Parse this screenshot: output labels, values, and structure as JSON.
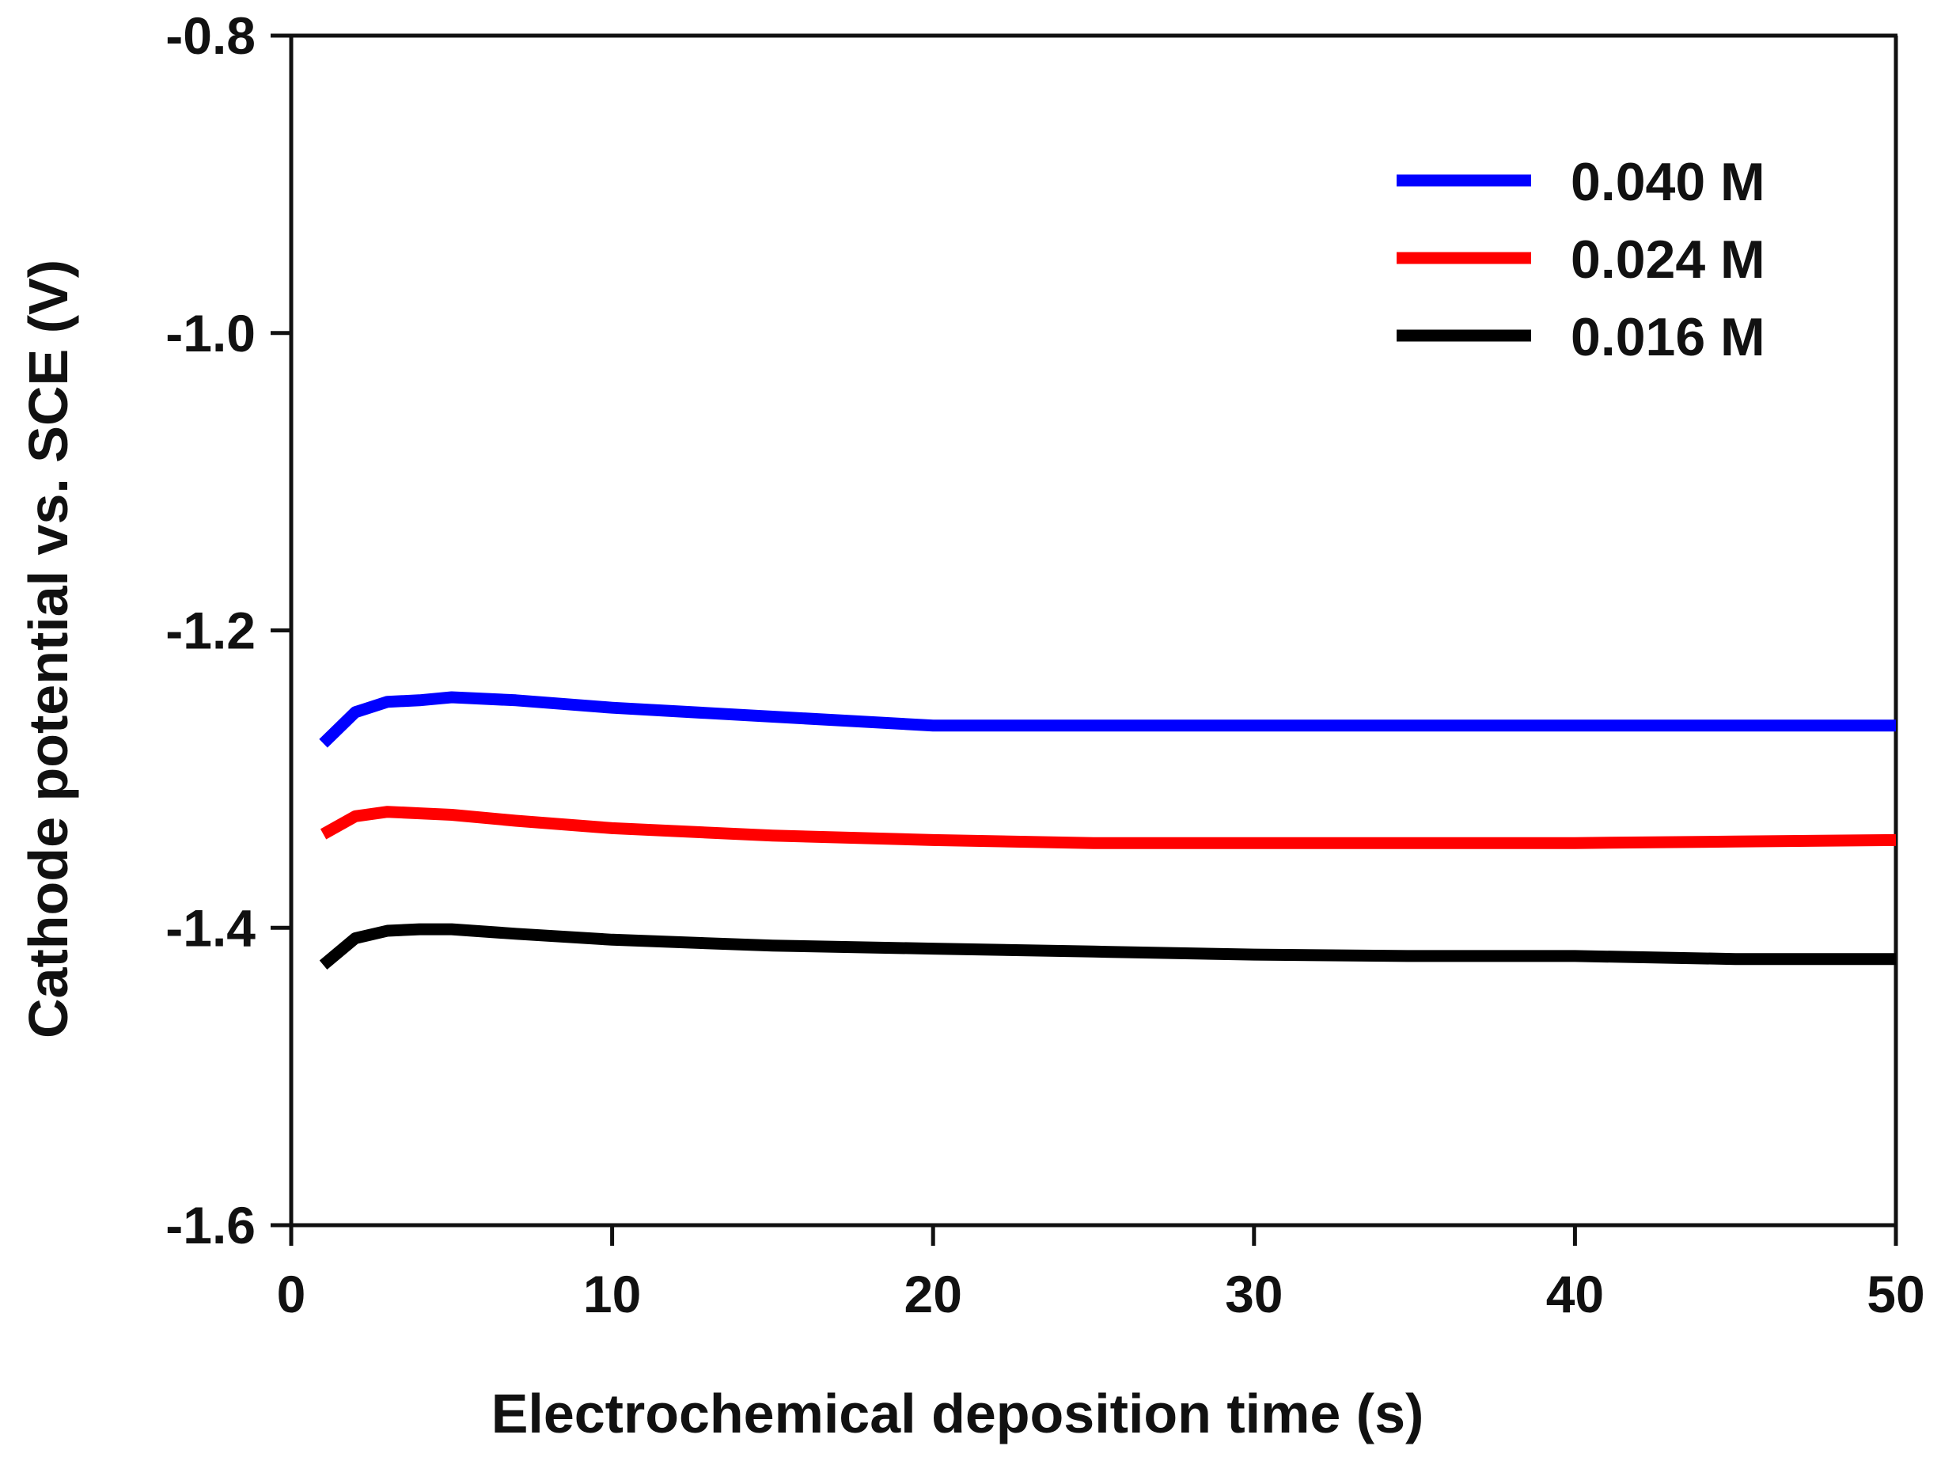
{
  "chart_data": {
    "type": "line",
    "title": "",
    "xlabel": "Electrochemical deposition time (s)",
    "ylabel": "Cathode potential vs. SCE (V)",
    "xlim": [
      0,
      50
    ],
    "ylim": [
      -1.6,
      -0.8
    ],
    "xticks": [
      0,
      10,
      20,
      30,
      40,
      50
    ],
    "xtick_labels": [
      "0",
      "10",
      "20",
      "30",
      "40",
      "50"
    ],
    "yticks": [
      -0.8,
      -1.0,
      -1.2,
      -1.4,
      -1.6
    ],
    "ytick_labels": [
      "-0.8",
      "-1.0",
      "-1.2",
      "-1.4",
      "-1.6"
    ],
    "grid": false,
    "legend_position": "top-right",
    "series": [
      {
        "name": "0.040 M",
        "color": "#0000ff",
        "x": [
          1,
          2,
          3,
          4,
          5,
          7,
          10,
          15,
          20,
          25,
          30,
          35,
          40,
          45,
          50
        ],
        "y": [
          -1.276,
          -1.255,
          -1.248,
          -1.247,
          -1.245,
          -1.247,
          -1.252,
          -1.258,
          -1.264,
          -1.264,
          -1.264,
          -1.264,
          -1.264,
          -1.264,
          -1.264
        ]
      },
      {
        "name": "0.024 M",
        "color": "#ff0000",
        "x": [
          1,
          2,
          3,
          4,
          5,
          7,
          10,
          15,
          20,
          25,
          30,
          35,
          40,
          45,
          50
        ],
        "y": [
          -1.337,
          -1.325,
          -1.322,
          -1.323,
          -1.324,
          -1.328,
          -1.333,
          -1.338,
          -1.341,
          -1.343,
          -1.343,
          -1.343,
          -1.343,
          -1.342,
          -1.341
        ]
      },
      {
        "name": "0.016 M",
        "color": "#000000",
        "x": [
          1,
          2,
          3,
          4,
          5,
          7,
          10,
          15,
          20,
          25,
          30,
          35,
          40,
          45,
          50
        ],
        "y": [
          -1.425,
          -1.407,
          -1.402,
          -1.401,
          -1.401,
          -1.404,
          -1.408,
          -1.412,
          -1.414,
          -1.416,
          -1.418,
          -1.419,
          -1.419,
          -1.421,
          -1.421
        ]
      }
    ]
  }
}
